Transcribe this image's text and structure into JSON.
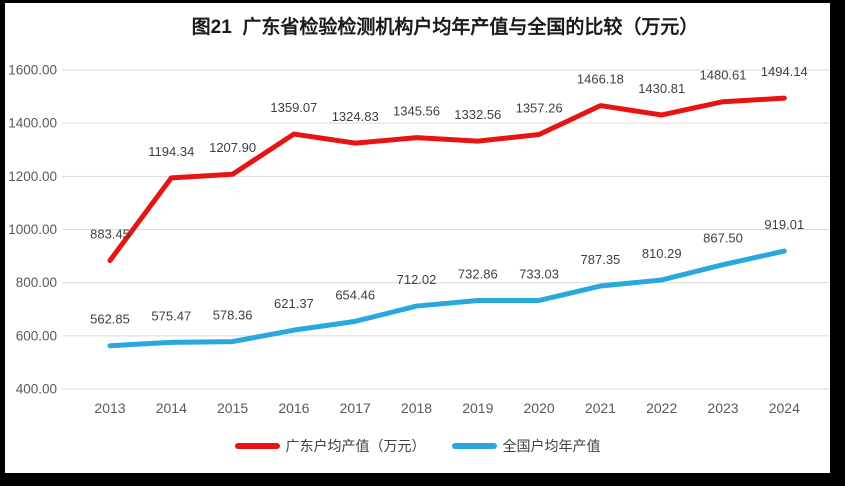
{
  "window": {
    "background": "#ffffff",
    "frame_color": "#000000"
  },
  "chart_data": {
    "type": "line",
    "title": "图21  广东省检验检测机构户均年产值与全国的比较（万元）",
    "categories": [
      "2013",
      "2014",
      "2015",
      "2016",
      "2017",
      "2018",
      "2019",
      "2020",
      "2021",
      "2022",
      "2023",
      "2024"
    ],
    "series": [
      {
        "name": "广东户均产值（万元）",
        "color": "#e81414",
        "values": [
          883.45,
          1194.34,
          1207.9,
          1359.07,
          1324.83,
          1345.56,
          1332.56,
          1357.26,
          1466.18,
          1430.81,
          1480.61,
          1494.14
        ]
      },
      {
        "name": "全国户均年产值",
        "color": "#29a8e0",
        "values": [
          562.85,
          575.47,
          578.36,
          621.37,
          654.46,
          712.02,
          732.86,
          733.03,
          787.35,
          810.29,
          867.5,
          919.01
        ]
      }
    ],
    "ylim": [
      400,
      1600
    ],
    "ytick_step": 200,
    "ytick_labels": [
      "400.00",
      "600.00",
      "800.00",
      "1000.00",
      "1200.00",
      "1400.00",
      "1600.00"
    ],
    "value_decimals": 2,
    "grid": true,
    "gridline_color": "#d9d9d9",
    "axis_label_color": "#595959",
    "data_label_color": "#404040",
    "title_color": "#1a1a1a",
    "data_labels": true,
    "legend_position": "bottom",
    "line_width": 5
  }
}
